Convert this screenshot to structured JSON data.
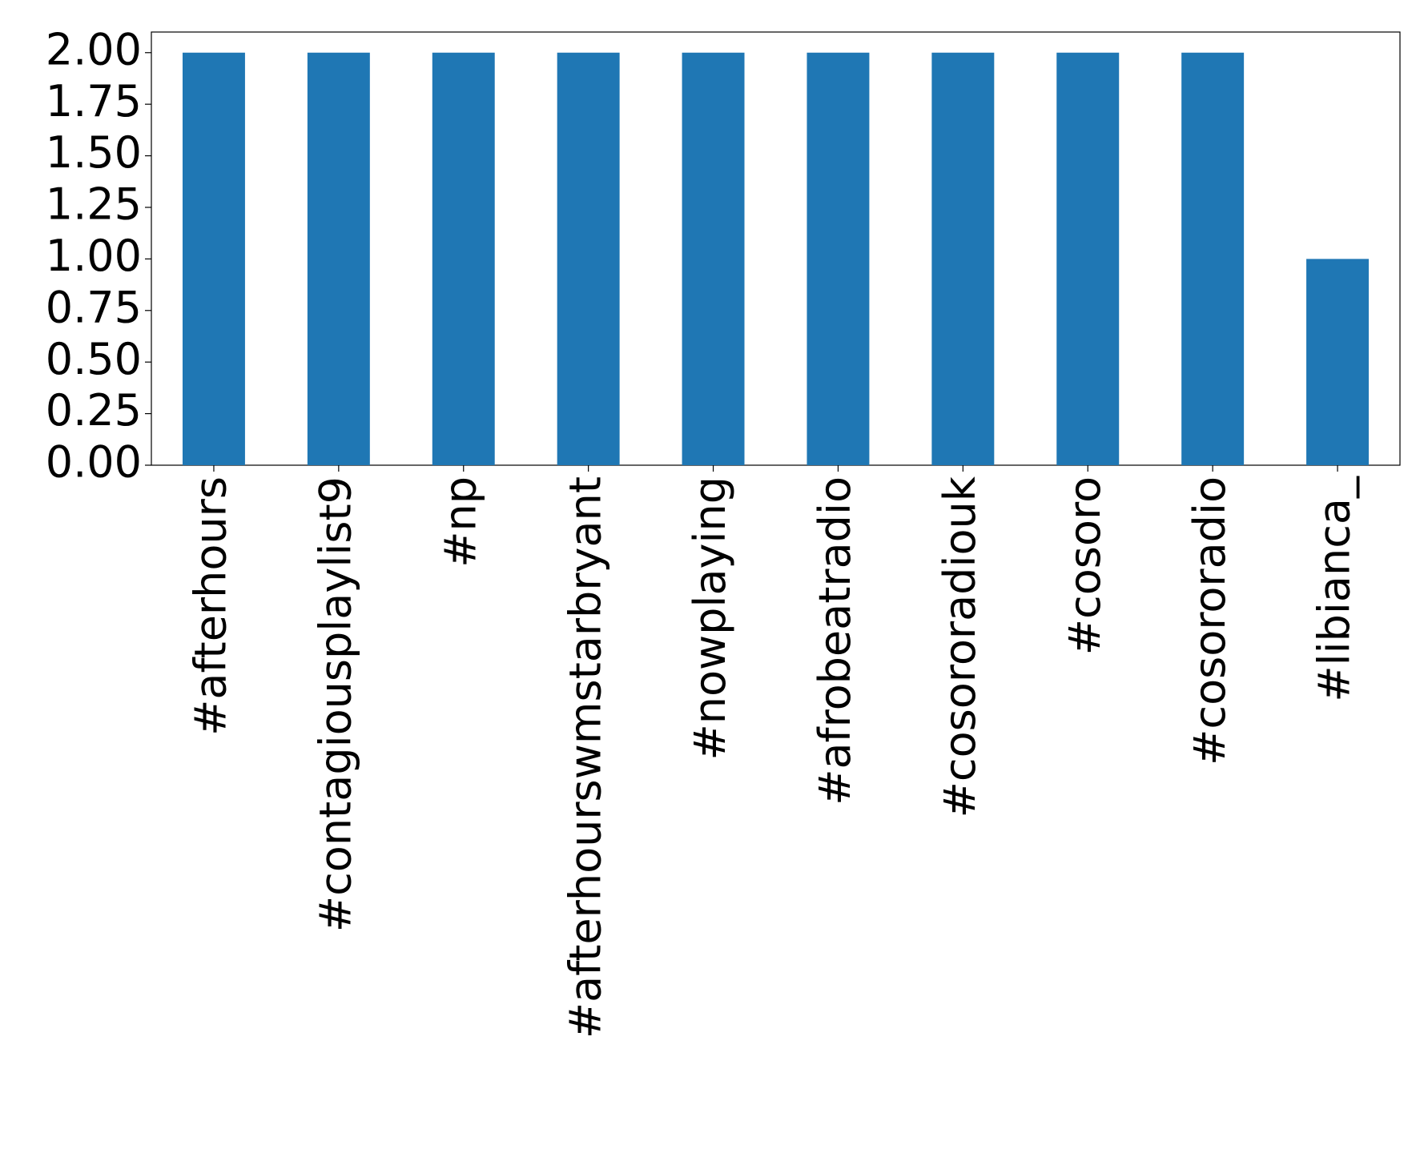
{
  "chart_data": {
    "type": "bar",
    "categories": [
      "#afterhours",
      "#contagiousplaylist9",
      "#np",
      "#afterhourswmstarbryant",
      "#nowplaying",
      "#afrobeatradio",
      "#cosororadiouk",
      "#cosoro",
      "#cosororadio",
      "#libianca_"
    ],
    "values": [
      2,
      2,
      2,
      2,
      2,
      2,
      2,
      2,
      2,
      1
    ],
    "color": "#1f77b4",
    "ylim": [
      0,
      2.1
    ],
    "yticks": [
      {
        "value": 0,
        "label": "0.00"
      },
      {
        "value": 0.25,
        "label": "0.25"
      },
      {
        "value": 0.5,
        "label": "0.50"
      },
      {
        "value": 0.75,
        "label": "0.75"
      },
      {
        "value": 1,
        "label": "1.00"
      },
      {
        "value": 1.25,
        "label": "1.25"
      },
      {
        "value": 1.5,
        "label": "1.50"
      },
      {
        "value": 1.75,
        "label": "1.75"
      },
      {
        "value": 2,
        "label": "2.00"
      }
    ],
    "grid": false
  }
}
